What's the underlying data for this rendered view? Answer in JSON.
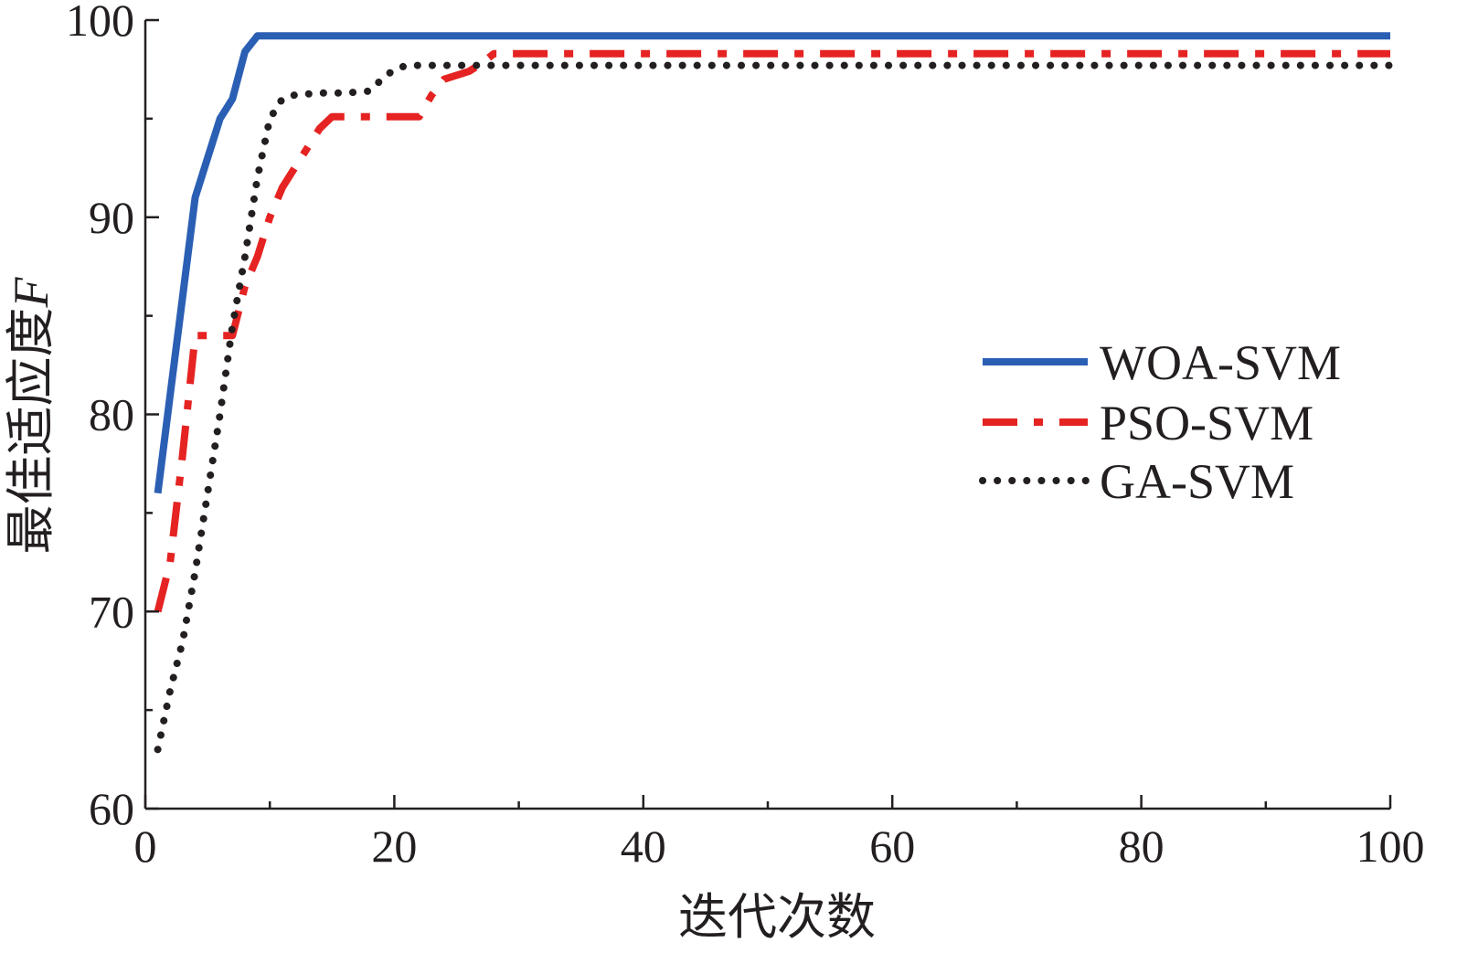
{
  "chart_data": {
    "type": "line",
    "xlabel": "迭代次数",
    "ylabel_main": "最佳适应度",
    "ylabel_var": "F",
    "xlim": [
      0,
      100
    ],
    "ylim": [
      60,
      100
    ],
    "xticks": [
      0,
      20,
      40,
      60,
      80,
      100
    ],
    "xticks_minor": [
      10,
      30,
      50,
      70,
      90
    ],
    "yticks": [
      60,
      70,
      80,
      90,
      100
    ],
    "grid": false,
    "legend_position": "right-middle",
    "series": [
      {
        "name": "WOA-SVM",
        "color": "#2b5fb4",
        "style": "solid",
        "x": [
          1,
          2,
          3,
          4,
          5,
          6,
          7,
          8,
          9,
          10,
          15,
          20,
          30,
          40,
          50,
          60,
          70,
          80,
          90,
          100
        ],
        "y": [
          76,
          81,
          86,
          91,
          93,
          95,
          96,
          98.4,
          99.2,
          99.2,
          99.2,
          99.2,
          99.2,
          99.2,
          99.2,
          99.2,
          99.2,
          99.2,
          99.2,
          99.2
        ]
      },
      {
        "name": "PSO-SVM",
        "color": "#e52322",
        "style": "dashdot",
        "x": [
          1,
          2,
          3,
          4,
          5,
          6,
          7,
          8,
          9,
          10,
          11,
          12,
          13,
          14,
          15,
          16,
          18,
          20,
          22,
          23,
          24,
          26,
          27,
          28,
          30,
          40,
          50,
          60,
          70,
          80,
          90,
          100
        ],
        "y": [
          70,
          72.5,
          78,
          84,
          84,
          84,
          84,
          86.5,
          88,
          90,
          91.5,
          92.5,
          93.5,
          94.5,
          95.1,
          95.1,
          95.1,
          95.1,
          95.1,
          96.2,
          97.0,
          97.4,
          97.8,
          98.3,
          98.3,
          98.3,
          98.3,
          98.3,
          98.3,
          98.3,
          98.3,
          98.3
        ]
      },
      {
        "name": "GA-SVM",
        "color": "#231f20",
        "style": "dotted",
        "x": [
          1,
          2,
          3,
          4,
          5,
          6,
          7,
          8,
          9,
          10,
          11,
          12,
          14,
          16,
          18,
          19,
          20,
          21,
          22,
          25,
          30,
          40,
          50,
          60,
          70,
          80,
          90,
          100
        ],
        "y": [
          63,
          66,
          68.5,
          72,
          76,
          80,
          84.5,
          88,
          92,
          95,
          96,
          96.2,
          96.3,
          96.3,
          96.4,
          97.0,
          97.5,
          97.7,
          97.7,
          97.7,
          97.7,
          97.7,
          97.7,
          97.7,
          97.7,
          97.7,
          97.7,
          97.7
        ]
      }
    ]
  }
}
